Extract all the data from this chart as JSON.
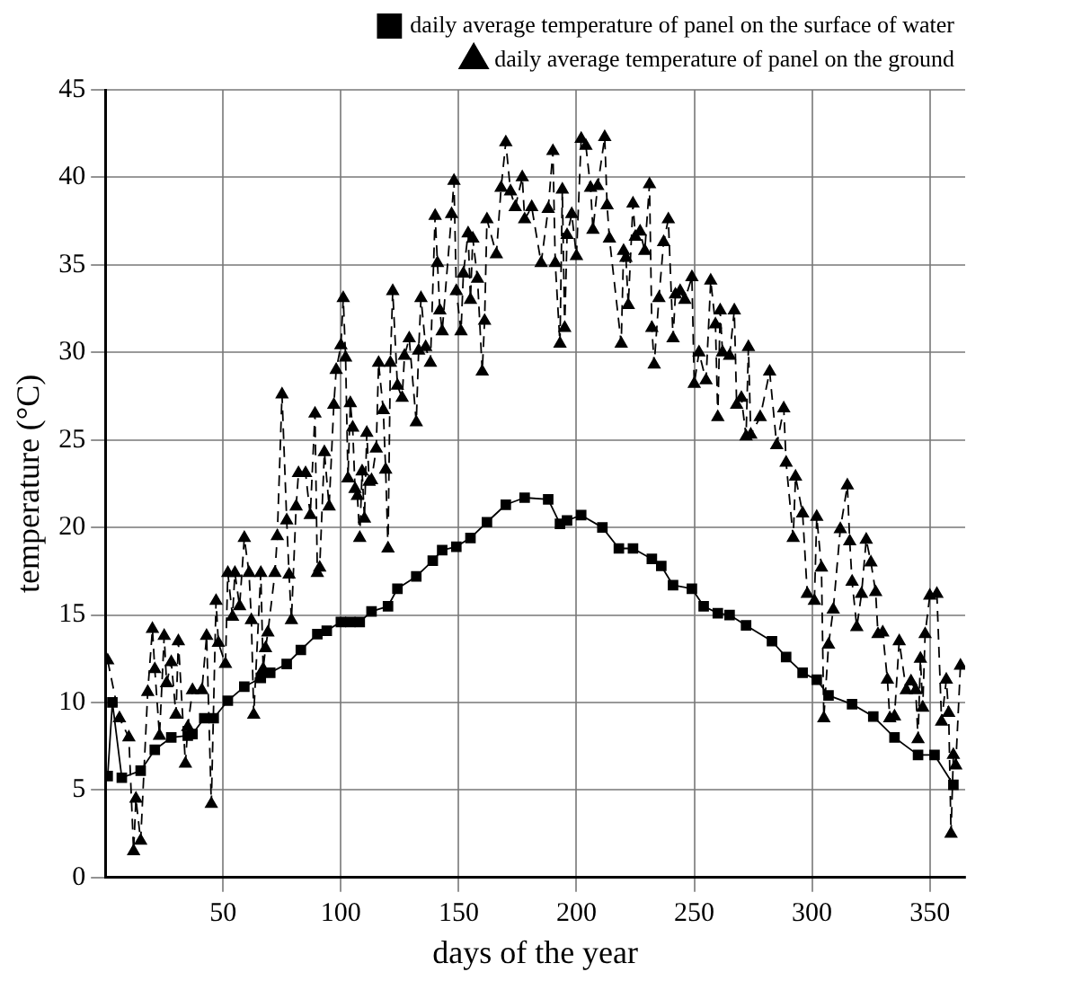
{
  "chart_data": {
    "type": "line",
    "xlabel": "days of the year",
    "ylabel": "temperature (°C)",
    "xlim": [
      0,
      365
    ],
    "ylim": [
      0,
      45
    ],
    "xticks": [
      50,
      100,
      150,
      200,
      250,
      300,
      350
    ],
    "yticks": [
      0,
      5,
      10,
      15,
      20,
      25,
      30,
      35,
      40,
      45
    ],
    "grid": true,
    "legend": "top right",
    "series": [
      {
        "name": "daily average temperature of panel on the surface of water",
        "color": "#000000",
        "marker": "square",
        "line_style": "solid",
        "x": [
          1,
          3,
          7,
          15,
          21,
          28,
          35,
          37,
          42,
          46,
          52,
          59,
          66,
          70,
          77,
          83,
          90,
          94,
          100,
          104,
          108,
          113,
          120,
          124,
          132,
          139,
          143,
          149,
          155,
          162,
          170,
          178,
          188,
          193,
          196,
          202,
          211,
          218,
          224,
          232,
          236,
          241,
          249,
          254,
          260,
          265,
          272,
          283,
          289,
          296,
          302,
          307,
          317,
          326,
          335,
          345,
          352,
          360
        ],
        "values": [
          5.8,
          10.0,
          5.7,
          6.1,
          7.3,
          8.0,
          8.1,
          8.2,
          9.1,
          9.1,
          10.1,
          10.9,
          11.4,
          11.7,
          12.2,
          13.0,
          13.9,
          14.1,
          14.6,
          14.6,
          14.6,
          15.2,
          15.5,
          16.5,
          17.2,
          18.1,
          18.7,
          18.9,
          19.4,
          20.3,
          21.3,
          21.7,
          21.6,
          20.2,
          20.4,
          20.7,
          20.0,
          18.8,
          18.8,
          18.2,
          17.8,
          16.7,
          16.5,
          15.5,
          15.1,
          15.0,
          14.4,
          13.5,
          12.6,
          11.7,
          11.3,
          10.4,
          9.9,
          9.2,
          8.0,
          7.0,
          7.0,
          5.3
        ]
      },
      {
        "name": "daily average temperature of panel on the ground",
        "color": "#000000",
        "marker": "triangle",
        "line_style": "dashed",
        "x": [
          1,
          6,
          10,
          12,
          13,
          15,
          18,
          20,
          21,
          23,
          25,
          26,
          28,
          30,
          31,
          34,
          35,
          37,
          41,
          43,
          45,
          47,
          48,
          51,
          52,
          54,
          55,
          57,
          59,
          61,
          62,
          63,
          66,
          67,
          68,
          69,
          72,
          73,
          75,
          77,
          78,
          79,
          81,
          82,
          85,
          87,
          89,
          90,
          91,
          93,
          95,
          97,
          98,
          100,
          101,
          102,
          103,
          104,
          105,
          106,
          107,
          108,
          109,
          110,
          111,
          112,
          113,
          115,
          116,
          118,
          119,
          120,
          121,
          122,
          124,
          126,
          127,
          129,
          132,
          133,
          134,
          136,
          138,
          140,
          141,
          142,
          143,
          147,
          148,
          149,
          151,
          152,
          154,
          155,
          156,
          158,
          160,
          161,
          162,
          166,
          168,
          170,
          172,
          174,
          177,
          178,
          181,
          185,
          188,
          190,
          191,
          193,
          194,
          195,
          196,
          198,
          200,
          202,
          204,
          206,
          207,
          209,
          212,
          213,
          214,
          219,
          220,
          221,
          222,
          224,
          225,
          227,
          229,
          231,
          232,
          233,
          235,
          237,
          239,
          241,
          242,
          244,
          246,
          249,
          250,
          252,
          255,
          257,
          259,
          260,
          261,
          262,
          265,
          267,
          268,
          270,
          272,
          273,
          274,
          278,
          282,
          285,
          288,
          289,
          292,
          293,
          296,
          298,
          301,
          302,
          304,
          305,
          307,
          309,
          312,
          315,
          316,
          317,
          319,
          321,
          323,
          325,
          327,
          328,
          330,
          332,
          333,
          335,
          337,
          340,
          342,
          344,
          345,
          346,
          347,
          348,
          350,
          353,
          355,
          357,
          358,
          359,
          360,
          361,
          363
        ],
        "values": [
          12.4,
          9.1,
          8.0,
          1.5,
          4.5,
          2.1,
          10.6,
          14.2,
          11.9,
          8.1,
          13.8,
          11.1,
          12.3,
          9.3,
          13.5,
          6.5,
          8.6,
          10.7,
          10.7,
          13.8,
          4.2,
          15.8,
          13.4,
          12.2,
          17.4,
          14.9,
          17.4,
          15.5,
          19.4,
          17.4,
          14.7,
          9.3,
          17.4,
          11.9,
          13.1,
          14.0,
          17.4,
          19.5,
          27.6,
          20.4,
          17.3,
          14.7,
          21.2,
          23.1,
          23.1,
          20.7,
          26.5,
          17.4,
          17.7,
          24.3,
          21.2,
          27.0,
          29.0,
          30.4,
          33.1,
          29.7,
          22.8,
          27.1,
          25.7,
          22.2,
          21.8,
          19.4,
          23.2,
          20.5,
          25.4,
          22.6,
          22.7,
          24.5,
          29.4,
          26.7,
          23.3,
          18.8,
          29.4,
          33.5,
          28.1,
          27.4,
          29.8,
          30.8,
          26.0,
          30.1,
          33.1,
          30.3,
          29.4,
          37.8,
          35.1,
          32.4,
          31.2,
          37.9,
          39.8,
          33.5,
          31.2,
          34.5,
          36.8,
          33.0,
          36.5,
          34.2,
          28.9,
          31.8,
          37.6,
          35.6,
          39.4,
          42.0,
          39.2,
          38.3,
          40.0,
          37.6,
          38.3,
          35.1,
          38.2,
          41.5,
          35.1,
          30.5,
          39.3,
          31.4,
          36.7,
          37.9,
          35.5,
          42.2,
          41.8,
          39.4,
          37.0,
          39.5,
          42.3,
          38.4,
          36.5,
          30.5,
          35.8,
          35.4,
          32.7,
          38.5,
          36.6,
          36.9,
          35.8,
          39.6,
          31.4,
          29.3,
          33.1,
          36.3,
          37.6,
          30.8,
          33.3,
          33.5,
          33.0,
          34.3,
          28.2,
          30.0,
          28.4,
          34.1,
          31.6,
          26.3,
          32.4,
          30.0,
          29.8,
          32.4,
          27.0,
          27.4,
          25.2,
          30.3,
          25.3,
          26.3,
          28.9,
          24.7,
          26.8,
          23.7,
          19.4,
          22.9,
          20.8,
          16.2,
          15.8,
          20.6,
          17.7,
          9.1,
          13.3,
          15.3,
          19.9,
          22.4,
          19.2,
          16.9,
          14.3,
          16.2,
          19.3,
          18.0,
          16.3,
          13.9,
          14.0,
          11.3,
          9.1,
          9.2,
          13.5,
          10.7,
          11.2,
          10.7,
          7.9,
          12.5,
          9.7,
          13.9,
          16.1,
          16.2,
          8.9,
          11.3,
          9.4,
          2.5,
          7.0,
          6.4,
          12.1
        ]
      }
    ]
  }
}
